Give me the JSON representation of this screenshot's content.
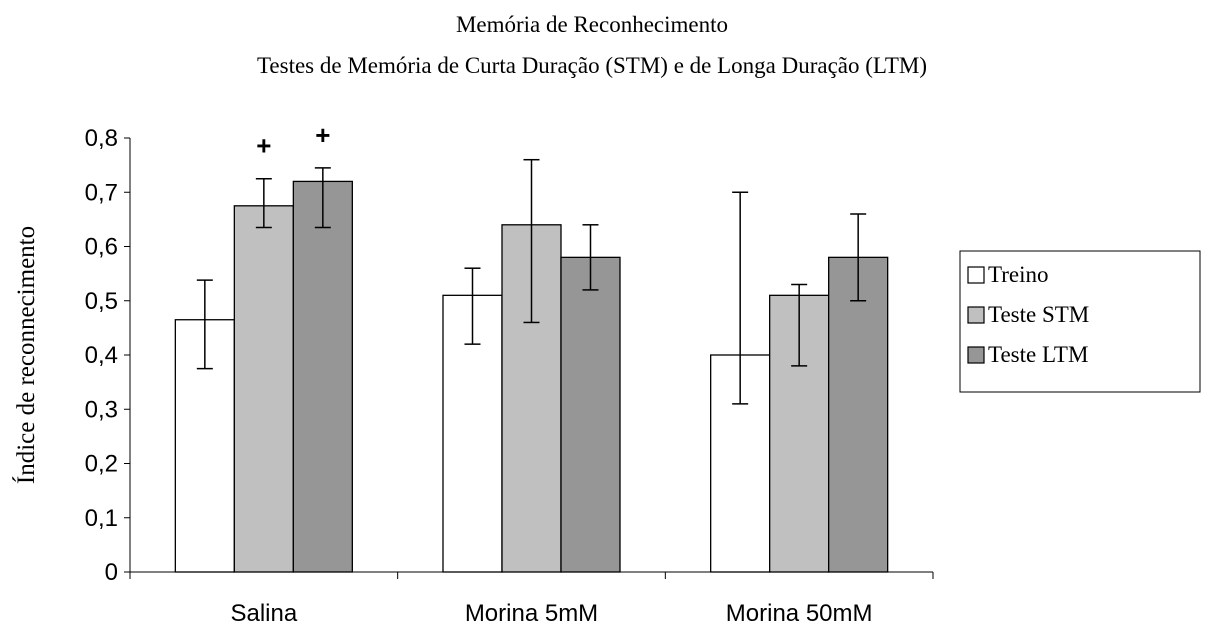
{
  "chart_data": {
    "type": "bar",
    "title": "Memória de Reconhecimento",
    "subtitle": "Testes de Memória de Curta Duração (STM) e de Longa Duração (LTM)",
    "ylabel": "Índice de reconnecimento",
    "xlabel": "",
    "ylim": [
      0,
      0.8
    ],
    "yticks": [
      "0",
      "0,1",
      "0,2",
      "0,3",
      "0,4",
      "0,5",
      "0,6",
      "0,7",
      "0,8"
    ],
    "ytick_values": [
      0,
      0.1,
      0.2,
      0.3,
      0.4,
      0.5,
      0.6,
      0.7,
      0.8
    ],
    "categories": [
      "Salina",
      "Morina 5mM",
      "Morina 50mM"
    ],
    "grid": false,
    "legend_position": "right",
    "series": [
      {
        "name": "Treino",
        "color": "#ffffff",
        "values": [
          0.465,
          0.51,
          0.4
        ],
        "err_low": [
          0.375,
          0.42,
          0.31
        ],
        "err_high": [
          0.538,
          0.56,
          0.7
        ]
      },
      {
        "name": "Teste STM",
        "color": "#c0c0c0",
        "values": [
          0.675,
          0.64,
          0.51
        ],
        "err_low": [
          0.635,
          0.46,
          0.38
        ],
        "err_high": [
          0.725,
          0.76,
          0.53
        ]
      },
      {
        "name": "Teste LTM",
        "color": "#969696",
        "values": [
          0.72,
          0.58,
          0.58
        ],
        "err_low": [
          0.635,
          0.52,
          0.5
        ],
        "err_high": [
          0.745,
          0.64,
          0.66
        ]
      }
    ],
    "annotations": [
      {
        "text": "+",
        "category": 0,
        "series": 1
      },
      {
        "text": "+",
        "category": 0,
        "series": 2
      }
    ]
  }
}
